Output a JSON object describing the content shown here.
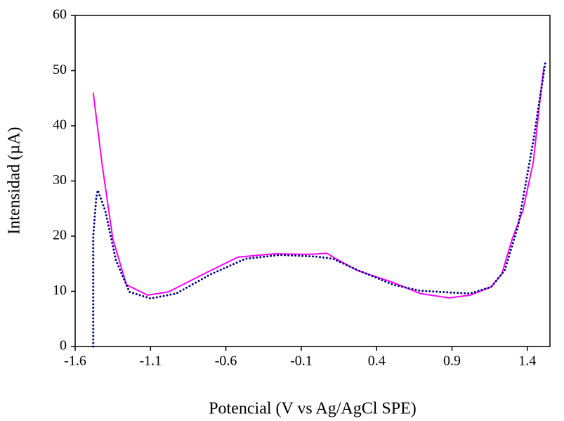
{
  "chart_data": {
    "type": "line",
    "xlabel": "Potencial (V vs Ag/AgCl SPE)",
    "ylabel": "Intensidad (µA)",
    "xlim": [
      -1.6,
      1.55
    ],
    "ylim": [
      0,
      60
    ],
    "xticks": [
      -1.6,
      -1.1,
      -0.6,
      -0.1,
      0.4,
      0.9,
      1.4
    ],
    "yticks": [
      0,
      10,
      20,
      30,
      40,
      50,
      60
    ],
    "series": [
      {
        "color": "#ff00ff",
        "style": "solid",
        "x": [
          -1.48,
          -1.42,
          -1.35,
          -1.26,
          -1.12,
          -0.98,
          -0.75,
          -0.52,
          -0.28,
          -0.05,
          0.07,
          0.13,
          0.27,
          0.51,
          0.69,
          0.88,
          1.02,
          1.16,
          1.23,
          1.3,
          1.37,
          1.44,
          1.48,
          1.51
        ],
        "values": [
          46,
          32.8,
          19.5,
          11.2,
          9.3,
          9.9,
          13.1,
          16.2,
          16.8,
          16.7,
          16.9,
          15.9,
          13.8,
          11.6,
          9.6,
          8.8,
          9.3,
          10.8,
          13.1,
          19.5,
          24.6,
          33.5,
          43.7,
          50.7
        ]
      },
      {
        "color": "#000080",
        "style": "dotted",
        "x": [
          -1.48,
          -1.48,
          -1.46,
          -1.45,
          -1.4,
          -1.33,
          -1.24,
          -1.1,
          -0.93,
          -0.7,
          -0.47,
          -0.24,
          0,
          0.11,
          0.27,
          0.51,
          0.69,
          0.88,
          1.02,
          1.16,
          1.25,
          1.34,
          1.44,
          1.52
        ],
        "values": [
          0,
          20,
          27,
          28.3,
          24.6,
          15.7,
          9.9,
          8.7,
          9.6,
          13.1,
          15.9,
          16.6,
          16.3,
          15.9,
          13.9,
          11.2,
          10.1,
          9.8,
          9.6,
          10.8,
          13.8,
          22,
          37.3,
          51.6
        ]
      }
    ]
  }
}
